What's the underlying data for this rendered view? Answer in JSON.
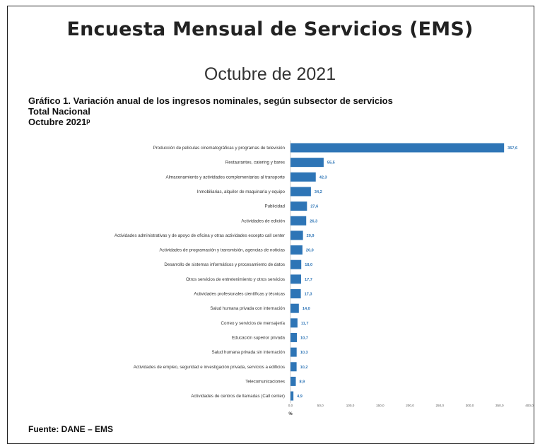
{
  "header": {
    "title": "Encuesta Mensual de Servicios (EMS)",
    "subtitle": "Octubre de 2021"
  },
  "chart_heading": {
    "line1": "Gráfico 1. Variación anual de los ingresos nominales, según subsector de servicios",
    "line2": "Total Nacional",
    "line3": "Octubre 2021ᵖ"
  },
  "footer": {
    "source": "Fuente: DANE – EMS"
  },
  "colors": {
    "bar": "#2E75B6",
    "value_label": "#2E75B6"
  },
  "chart_data": {
    "type": "bar",
    "orientation": "horizontal",
    "categories": [
      "Producción de películas cinematográficas y programas de televisión",
      "Restaurantes, catering y bares",
      "Almacenamiento y actividades complementarias al transporte",
      "Inmobiliarias, alquiler de maquinaria y equipo",
      "Publicidad",
      "Actividades de edición",
      "Actividades administrativas y de apoyo de oficina y otras actividades excepto call center",
      "Actividades de programación y transmisión, agencias de noticias",
      "Desarrollo de sistemas informáticos y procesamiento de datos",
      "Otros servicios de entretenimiento y otros servicios",
      "Actividades profesionales científicas y técnicas",
      "Salud humana privada con internación",
      "Correo y servicios de mensajería",
      "Educación superior privada",
      "Salud humana privada sin internación",
      "Actividades de empleo, seguridad e investigación privada, servicios a edificios",
      "Telecomunicaciones",
      "Actividades de centros de llamadas (Call center)"
    ],
    "values": [
      357.6,
      55.5,
      42.3,
      34.2,
      27.6,
      26.3,
      20.9,
      20.0,
      18.0,
      17.7,
      17.3,
      14.0,
      11.7,
      10.7,
      10.3,
      10.2,
      8.9,
      4.9
    ],
    "value_labels": [
      "357,6",
      "55,5",
      "42,3",
      "34,2",
      "27,6",
      "26,3",
      "20,9",
      "20,0",
      "18,0",
      "17,7",
      "17,3",
      "14,0",
      "11,7",
      "10,7",
      "10,3",
      "10,2",
      "8,9",
      "4,9"
    ],
    "xticks": [
      "0,0",
      "50,0",
      "100,0",
      "150,0",
      "200,0",
      "250,0",
      "300,0",
      "350,0",
      "400,0"
    ],
    "xlim": [
      0,
      400
    ],
    "xlabel": "%",
    "ylabel": "",
    "grid": false
  }
}
